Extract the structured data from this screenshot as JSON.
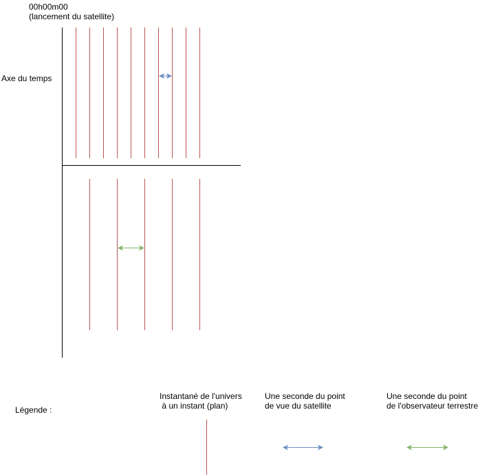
{
  "header": {
    "time_label": "00h00m00",
    "time_note": "(lancement du satellite)"
  },
  "axis_label": "Axe du temps",
  "legend": {
    "title": "Légende :",
    "items": [
      {
        "line1": "Instantané de l'univers",
        "line2": " à un instant (plan)",
        "color": "#b85450",
        "symbol": "red-vertical-line"
      },
      {
        "line1": "Une seconde du point",
        "line2": "de vue du satellite",
        "color": "#6c8ebf",
        "symbol": "blue-double-arrow"
      },
      {
        "line1": "Une seconde du point",
        "line2": "de l'observateur terrestre",
        "color": "#82b366",
        "symbol": "green-double-arrow"
      }
    ]
  },
  "colors": {
    "instant_line": "#b85450",
    "satellite_second": "#6c8ebf",
    "earth_second": "#82b366",
    "axis": "#000000"
  }
}
